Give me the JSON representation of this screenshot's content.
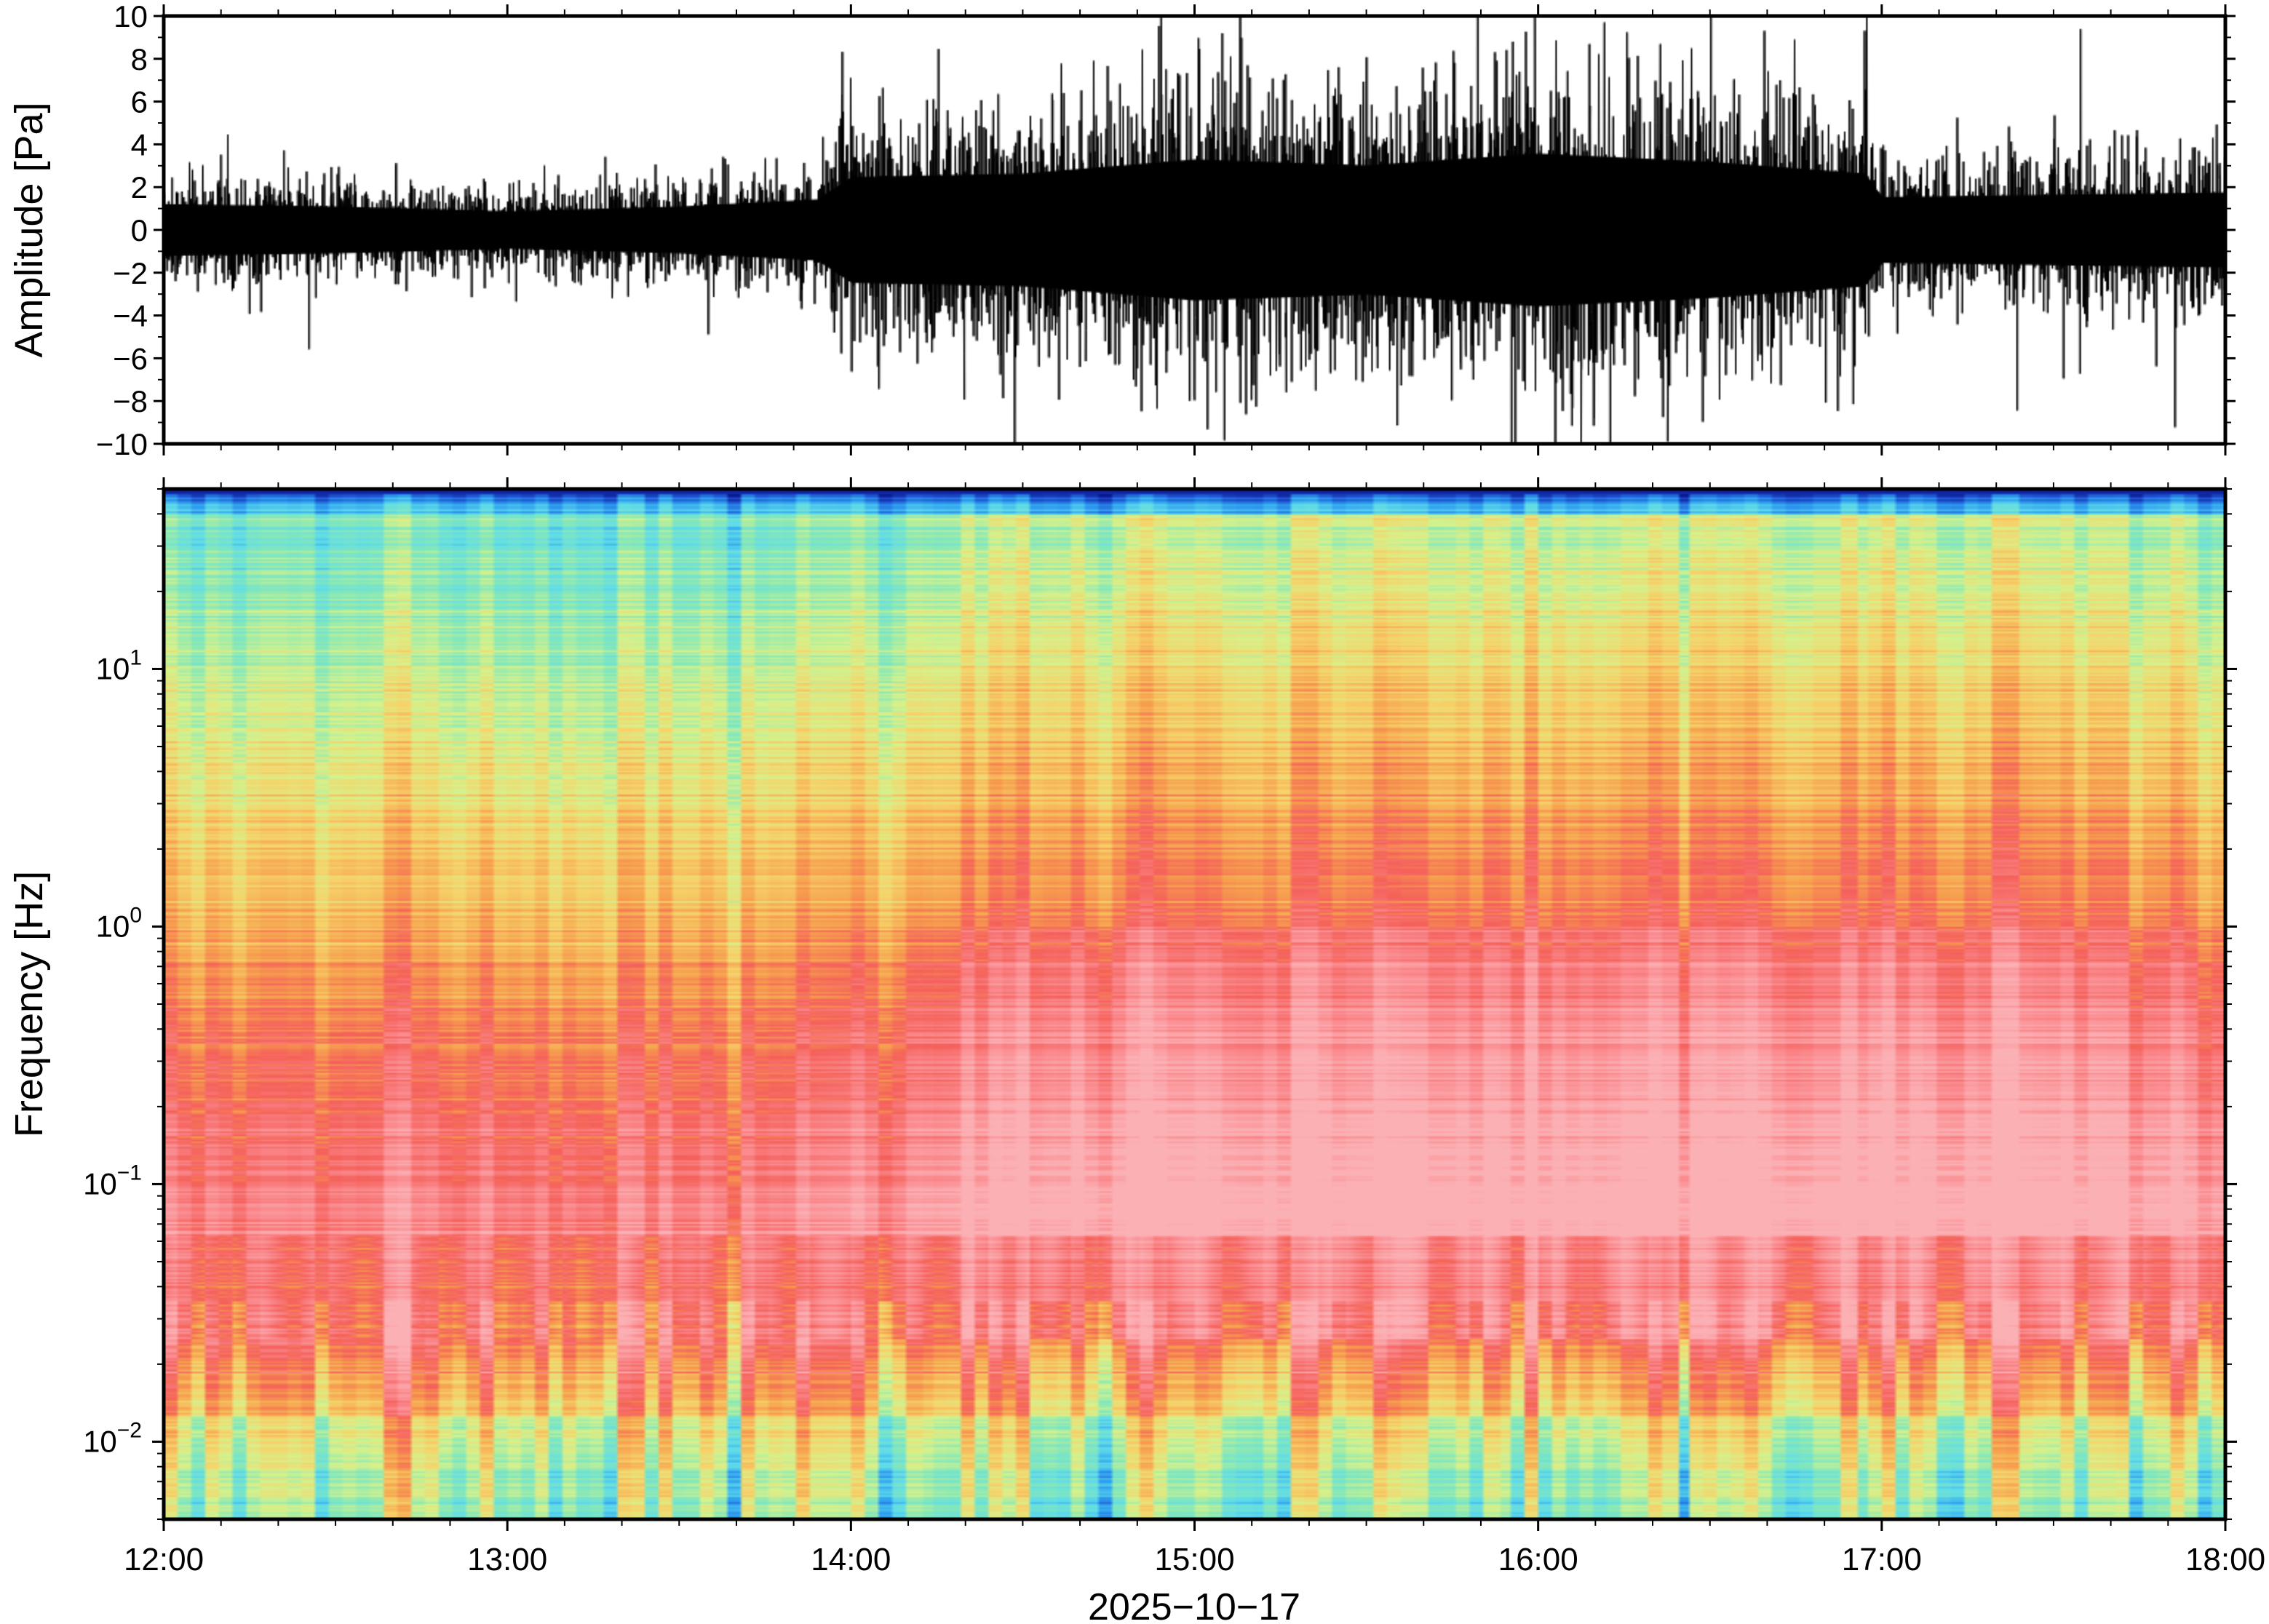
{
  "chart_data": [
    {
      "type": "line",
      "panel": "waveform",
      "ylabel": "Amplitude [Pa]",
      "ylim": [
        -10,
        10
      ],
      "yticks": [
        -10,
        -8,
        -6,
        -4,
        -2,
        0,
        2,
        4,
        6,
        8,
        10
      ],
      "ytick_labels": [
        "−10",
        "−8",
        "−6",
        "−4",
        "−2",
        "0",
        "2",
        "4",
        "6",
        "8",
        "10"
      ],
      "xlim": [
        "12:00",
        "18:00"
      ],
      "series": [
        {
          "x_hours": [
            12.0,
            12.5,
            13.0,
            13.5,
            13.9,
            14.0,
            14.5,
            15.0,
            15.5,
            16.0,
            16.5,
            16.95,
            17.0,
            17.5,
            18.0
          ],
          "envelope_pa": [
            2.2,
            2.0,
            1.6,
            2.0,
            2.6,
            4.5,
            4.8,
            6.0,
            5.5,
            6.5,
            5.8,
            4.8,
            2.8,
            3.0,
            3.2
          ]
        }
      ],
      "colors": {
        "trace": "#000000",
        "frame": "#000000"
      }
    },
    {
      "type": "heatmap",
      "panel": "spectrogram",
      "ylabel": "Frequency [Hz]",
      "yscale": "log",
      "ylim": [
        0.005,
        50
      ],
      "yticks": [
        0.01,
        0.1,
        1,
        10
      ],
      "ytick_labels": [
        {
          "base": "10",
          "exp": "−2"
        },
        {
          "base": "10",
          "exp": "−1"
        },
        {
          "base": "10",
          "exp": "0"
        },
        {
          "base": "10",
          "exp": "1"
        }
      ],
      "xlim": [
        "12:00",
        "18:00"
      ],
      "xticks": [
        "12:00",
        "13:00",
        "14:00",
        "15:00",
        "16:00",
        "17:00",
        "18:00"
      ],
      "xlabel": "2025−10−17",
      "colormap": [
        "#08108a",
        "#1e50d0",
        "#2e9ff0",
        "#5fdcea",
        "#86e8b8",
        "#d6f28c",
        "#f6d36a",
        "#f6a04e",
        "#f5605a",
        "#fa8a8e",
        "#fbb0b4"
      ]
    }
  ]
}
